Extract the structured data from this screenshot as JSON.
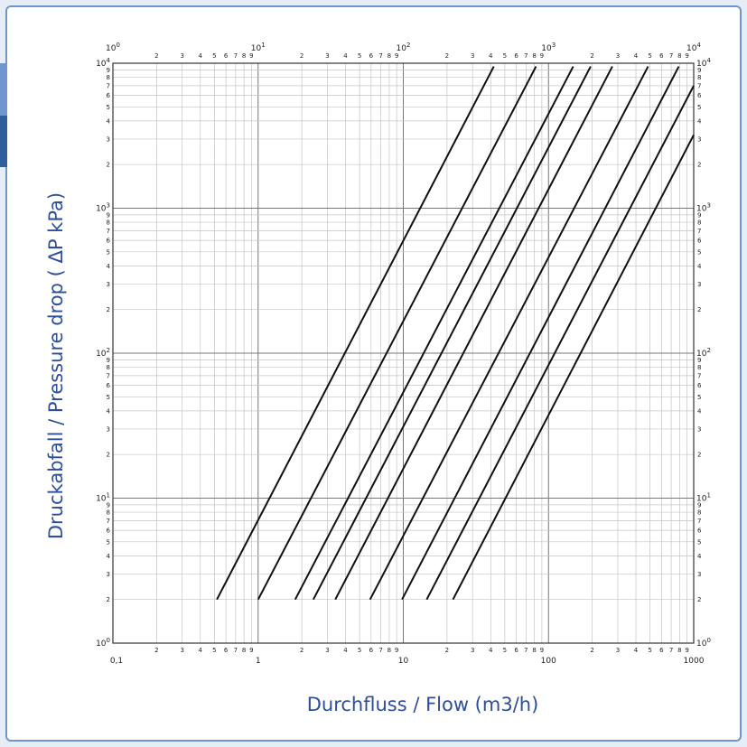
{
  "chart_data": {
    "type": "line",
    "xscale": "log",
    "yscale": "log",
    "grid": true,
    "xlabel": "Durchfluss / Flow (m3/h)",
    "ylabel": "Druckabfall / Pressure drop ( ΔP kPa)",
    "xlim": [
      0.1,
      1000
    ],
    "ylim": [
      1,
      10000
    ],
    "bottom_ticks": [
      "0,1",
      "1",
      "10",
      "100",
      "1000"
    ],
    "minor_tick_labels": [
      "2",
      "3",
      "4",
      "5",
      "6",
      "7",
      "8",
      "9"
    ],
    "top_decade_ticks": [
      {
        "base": "10",
        "exp": "0"
      },
      {
        "base": "10",
        "exp": "1"
      },
      {
        "base": "10",
        "exp": "2"
      },
      {
        "base": "10",
        "exp": "3"
      },
      {
        "base": "10",
        "exp": "4"
      }
    ],
    "y_decade_ticks": [
      {
        "base": "10",
        "exp": "0"
      },
      {
        "base": "10",
        "exp": "1"
      },
      {
        "base": "10",
        "exp": "2"
      },
      {
        "base": "10",
        "exp": "3"
      },
      {
        "base": "10",
        "exp": "4"
      }
    ],
    "series": [
      {
        "points": [
          [
            0.52,
            2
          ],
          [
            42,
            9500
          ]
        ]
      },
      {
        "points": [
          [
            1.0,
            2
          ],
          [
            82,
            9500
          ]
        ]
      },
      {
        "points": [
          [
            1.8,
            2
          ],
          [
            148,
            9500
          ]
        ]
      },
      {
        "points": [
          [
            2.4,
            2
          ],
          [
            195,
            9500
          ]
        ]
      },
      {
        "points": [
          [
            3.4,
            2
          ],
          [
            275,
            9500
          ]
        ]
      },
      {
        "points": [
          [
            5.9,
            2
          ],
          [
            485,
            9500
          ]
        ]
      },
      {
        "points": [
          [
            9.8,
            2
          ],
          [
            790,
            9500
          ]
        ]
      },
      {
        "points": [
          [
            14.5,
            2
          ],
          [
            1000,
            7000
          ]
        ]
      },
      {
        "points": [
          [
            22,
            2
          ],
          [
            1000,
            3200
          ]
        ]
      }
    ]
  }
}
